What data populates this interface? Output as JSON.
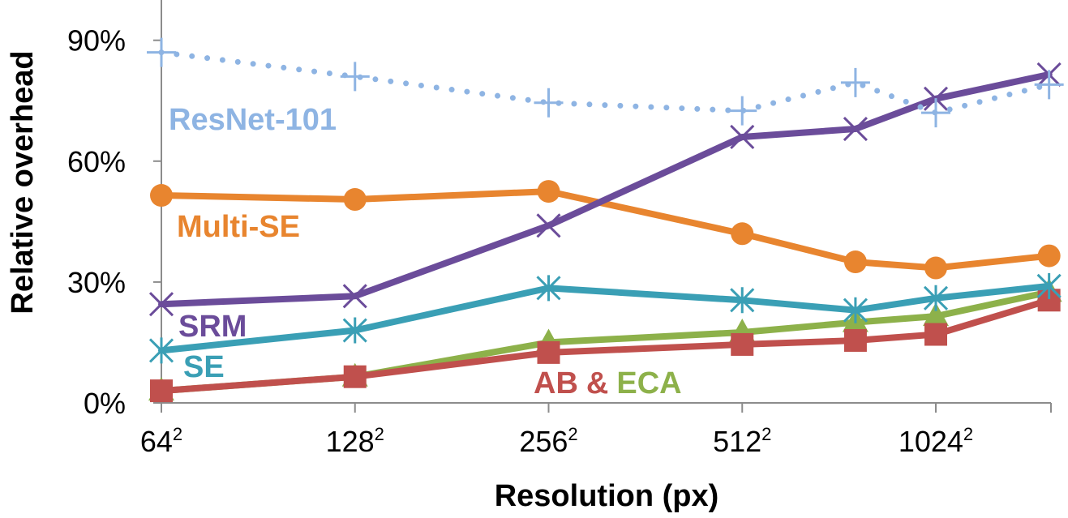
{
  "chart_data": {
    "type": "line",
    "title": "",
    "xlabel": "Resolution (px)",
    "ylabel": "Relative overhead",
    "x_tick_labels": [
      {
        "base": "64",
        "exp": "2"
      },
      {
        "base": "128",
        "exp": "2"
      },
      {
        "base": "256",
        "exp": "2"
      },
      {
        "base": "512",
        "exp": "2"
      },
      {
        "base": "1024",
        "exp": "2"
      }
    ],
    "y_ticks": [
      "0%",
      "30%",
      "60%",
      "90%"
    ],
    "y_tick_values": [
      0,
      30,
      60,
      90
    ],
    "ylim": [
      0,
      100
    ],
    "xscale": "log2",
    "x": [
      64,
      128,
      256,
      512,
      768,
      1024,
      1536
    ],
    "grid": false,
    "legend": "none (series labeled inline)",
    "series": [
      {
        "name": "ResNet-101",
        "label_text": "ResNet-101",
        "color": "#8eb4e3",
        "style": "dotted",
        "marker": "plus",
        "values": [
          87,
          81,
          74.5,
          72.5,
          79.5,
          72,
          79
        ]
      },
      {
        "name": "Multi-SE",
        "label_text": "Multi-SE",
        "color": "#e8852f",
        "style": "solid",
        "marker": "circle",
        "values": [
          51.5,
          50.5,
          52.5,
          42,
          35,
          33.5,
          36.5
        ]
      },
      {
        "name": "SRM",
        "label_text": "SRM",
        "color": "#6b4c9a",
        "style": "solid",
        "marker": "x",
        "values": [
          24.5,
          26.5,
          44,
          66,
          68,
          75.5,
          81.5
        ]
      },
      {
        "name": "SE",
        "label_text": "SE",
        "color": "#3a9fb5",
        "style": "solid",
        "marker": "star",
        "values": [
          13,
          18,
          28.5,
          25.5,
          23,
          26,
          29
        ]
      },
      {
        "name": "AB",
        "label_text": "AB",
        "color": "#c0504d",
        "style": "solid",
        "marker": "square",
        "values": [
          3,
          6.5,
          12.5,
          14.5,
          15.5,
          17,
          25.5
        ]
      },
      {
        "name": "ECA",
        "label_text": "ECA",
        "color": "#8db14a",
        "style": "solid",
        "marker": "triangle",
        "values": [
          3,
          6.5,
          15,
          17.5,
          20,
          21.5,
          27.5
        ]
      }
    ],
    "connector_text": "&"
  }
}
